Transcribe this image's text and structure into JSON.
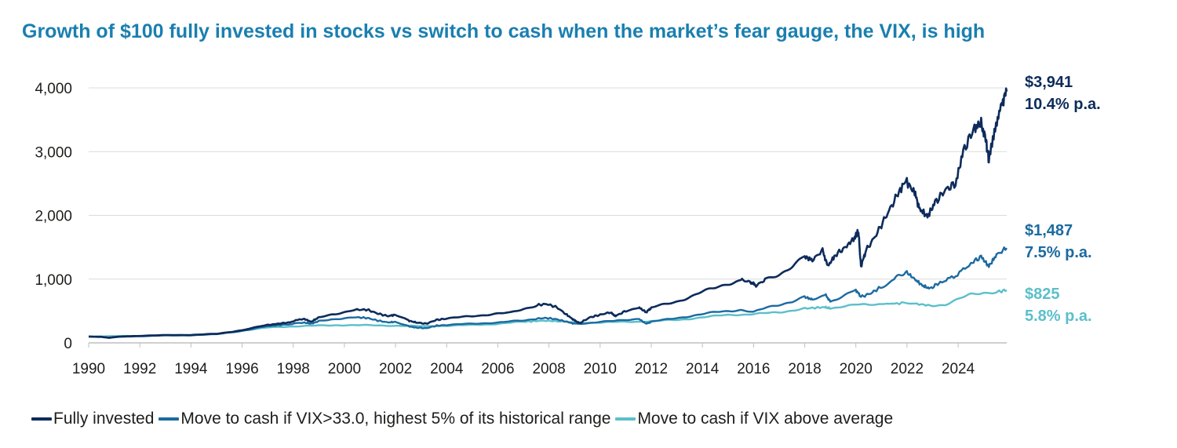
{
  "chart_data": {
    "type": "line",
    "title": "Growth of $100 fully invested in stocks vs switch to cash when the market’s fear gauge, the VIX, is high",
    "xlabel": "",
    "ylabel": "",
    "xlim": [
      1990,
      2025.9
    ],
    "ylim": [
      0,
      4000
    ],
    "x_ticks": [
      "1990",
      "1992",
      "1994",
      "1996",
      "1998",
      "2000",
      "2002",
      "2004",
      "2006",
      "2008",
      "2010",
      "2012",
      "2014",
      "2016",
      "2018",
      "2020",
      "2022",
      "2024"
    ],
    "y_ticks": [
      "0",
      "1,000",
      "2,000",
      "3,000",
      "4,000"
    ],
    "grid": "horizontal",
    "series": [
      {
        "name": "Fully invested",
        "color": "#0d2b5b",
        "end_value_label": "$3,941",
        "end_rate_label": "10.4% p.a.",
        "points": [
          [
            1990,
            100
          ],
          [
            1990.5,
            95
          ],
          [
            1990.8,
            80
          ],
          [
            1991,
            90
          ],
          [
            1991.5,
            105
          ],
          [
            1992,
            110
          ],
          [
            1993,
            120
          ],
          [
            1994,
            125
          ],
          [
            1995,
            140
          ],
          [
            1996,
            200
          ],
          [
            1997,
            280
          ],
          [
            1997.8,
            320
          ],
          [
            1998.4,
            380
          ],
          [
            1998.7,
            330
          ],
          [
            1999,
            400
          ],
          [
            1999.5,
            450
          ],
          [
            2000,
            480
          ],
          [
            2000.5,
            520
          ],
          [
            2000.9,
            520
          ],
          [
            2001.3,
            460
          ],
          [
            2001.7,
            420
          ],
          [
            2002,
            440
          ],
          [
            2002.5,
            350
          ],
          [
            2002.8,
            320
          ],
          [
            2003.2,
            300
          ],
          [
            2003.6,
            360
          ],
          [
            2004,
            380
          ],
          [
            2004.5,
            400
          ],
          [
            2005,
            420
          ],
          [
            2006,
            460
          ],
          [
            2006.5,
            470
          ],
          [
            2007,
            530
          ],
          [
            2007.5,
            590
          ],
          [
            2007.9,
            610
          ],
          [
            2008.3,
            560
          ],
          [
            2008.7,
            440
          ],
          [
            2009.0,
            350
          ],
          [
            2009.2,
            310
          ],
          [
            2009.6,
            400
          ],
          [
            2010,
            440
          ],
          [
            2010.4,
            480
          ],
          [
            2010.6,
            420
          ],
          [
            2011,
            500
          ],
          [
            2011.5,
            560
          ],
          [
            2011.8,
            480
          ],
          [
            2012,
            550
          ],
          [
            2012.5,
            600
          ],
          [
            2013,
            650
          ],
          [
            2013.5,
            720
          ],
          [
            2014,
            800
          ],
          [
            2014.5,
            860
          ],
          [
            2015,
            930
          ],
          [
            2015.5,
            990
          ],
          [
            2015.9,
            950
          ],
          [
            2016.1,
            900
          ],
          [
            2016.5,
            1000
          ],
          [
            2017,
            1080
          ],
          [
            2017.5,
            1200
          ],
          [
            2018,
            1350
          ],
          [
            2018.3,
            1300
          ],
          [
            2018.7,
            1450
          ],
          [
            2018.9,
            1200
          ],
          [
            2019.2,
            1380
          ],
          [
            2019.6,
            1500
          ],
          [
            2019.95,
            1650
          ],
          [
            2020.1,
            1750
          ],
          [
            2020.2,
            1200
          ],
          [
            2020.4,
            1450
          ],
          [
            2020.8,
            1700
          ],
          [
            2021.2,
            2000
          ],
          [
            2021.6,
            2300
          ],
          [
            2021.95,
            2550
          ],
          [
            2022.3,
            2350
          ],
          [
            2022.5,
            2100
          ],
          [
            2022.8,
            1980
          ],
          [
            2023.1,
            2200
          ],
          [
            2023.5,
            2400
          ],
          [
            2023.9,
            2500
          ],
          [
            2024.2,
            3000
          ],
          [
            2024.6,
            3350
          ],
          [
            2024.9,
            3450
          ],
          [
            2025.1,
            3150
          ],
          [
            2025.2,
            2850
          ],
          [
            2025.45,
            3400
          ],
          [
            2025.7,
            3750
          ],
          [
            2025.9,
            3941
          ]
        ]
      },
      {
        "name": "Move to cash if VIX>33.0, highest 5% of its historical range",
        "color": "#1b6aa0",
        "end_value_label": "$1,487",
        "end_rate_label": "7.5% p.a.",
        "points": [
          [
            1990,
            100
          ],
          [
            1990.5,
            92
          ],
          [
            1990.8,
            80
          ],
          [
            1991,
            88
          ],
          [
            1991.5,
            100
          ],
          [
            1992,
            105
          ],
          [
            1993,
            115
          ],
          [
            1994,
            120
          ],
          [
            1995,
            135
          ],
          [
            1996,
            190
          ],
          [
            1997,
            260
          ],
          [
            1997.8,
            290
          ],
          [
            1998.4,
            320
          ],
          [
            1998.7,
            300
          ],
          [
            1999,
            340
          ],
          [
            1999.5,
            370
          ],
          [
            2000,
            390
          ],
          [
            2000.5,
            400
          ],
          [
            2000.9,
            390
          ],
          [
            2001.3,
            350
          ],
          [
            2001.7,
            320
          ],
          [
            2002,
            330
          ],
          [
            2002.5,
            260
          ],
          [
            2002.8,
            240
          ],
          [
            2003.2,
            230
          ],
          [
            2003.6,
            270
          ],
          [
            2004,
            280
          ],
          [
            2005,
            300
          ],
          [
            2006,
            320
          ],
          [
            2007,
            350
          ],
          [
            2007.5,
            380
          ],
          [
            2007.9,
            390
          ],
          [
            2008.3,
            370
          ],
          [
            2008.7,
            330
          ],
          [
            2009.0,
            300
          ],
          [
            2009.5,
            310
          ],
          [
            2010,
            330
          ],
          [
            2010.5,
            340
          ],
          [
            2011,
            360
          ],
          [
            2011.5,
            380
          ],
          [
            2011.8,
            300
          ],
          [
            2012,
            330
          ],
          [
            2012.5,
            360
          ],
          [
            2013,
            390
          ],
          [
            2013.5,
            420
          ],
          [
            2014,
            450
          ],
          [
            2014.5,
            480
          ],
          [
            2015,
            500
          ],
          [
            2015.5,
            520
          ],
          [
            2016,
            480
          ],
          [
            2016.5,
            550
          ],
          [
            2017,
            600
          ],
          [
            2017.5,
            650
          ],
          [
            2018,
            720
          ],
          [
            2018.3,
            680
          ],
          [
            2018.8,
            760
          ],
          [
            2019,
            650
          ],
          [
            2019.5,
            740
          ],
          [
            2020,
            830
          ],
          [
            2020.2,
            720
          ],
          [
            2020.6,
            780
          ],
          [
            2021,
            880
          ],
          [
            2021.5,
            1000
          ],
          [
            2021.95,
            1120
          ],
          [
            2022.3,
            1000
          ],
          [
            2022.6,
            900
          ],
          [
            2022.9,
            850
          ],
          [
            2023.3,
            950
          ],
          [
            2023.9,
            1050
          ],
          [
            2024.5,
            1250
          ],
          [
            2024.9,
            1350
          ],
          [
            2025.2,
            1200
          ],
          [
            2025.5,
            1380
          ],
          [
            2025.9,
            1487
          ]
        ]
      },
      {
        "name": "Move to cash if VIX above average",
        "color": "#5bbfcb",
        "end_value_label": "$825",
        "end_rate_label": "5.8% p.a.",
        "points": [
          [
            1990,
            100
          ],
          [
            1991,
            105
          ],
          [
            1992,
            110
          ],
          [
            1993,
            120
          ],
          [
            1994,
            125
          ],
          [
            1995,
            140
          ],
          [
            1996,
            190
          ],
          [
            1997,
            240
          ],
          [
            1998,
            260
          ],
          [
            1999,
            270
          ],
          [
            2000,
            280
          ],
          [
            2001,
            275
          ],
          [
            2002,
            270
          ],
          [
            2003,
            260
          ],
          [
            2004,
            270
          ],
          [
            2005,
            280
          ],
          [
            2006,
            300
          ],
          [
            2007,
            330
          ],
          [
            2007.8,
            350
          ],
          [
            2008.5,
            330
          ],
          [
            2009,
            320
          ],
          [
            2010,
            320
          ],
          [
            2011,
            330
          ],
          [
            2012,
            340
          ],
          [
            2013,
            360
          ],
          [
            2014,
            400
          ],
          [
            2015,
            440
          ],
          [
            2016,
            450
          ],
          [
            2017,
            480
          ],
          [
            2018,
            540
          ],
          [
            2018.8,
            560
          ],
          [
            2019,
            540
          ],
          [
            2019.5,
            580
          ],
          [
            2020,
            600
          ],
          [
            2020.5,
            590
          ],
          [
            2021,
            610
          ],
          [
            2021.8,
            620
          ],
          [
            2022.3,
            610
          ],
          [
            2023,
            590
          ],
          [
            2023.5,
            600
          ],
          [
            2024,
            680
          ],
          [
            2024.5,
            760
          ],
          [
            2025,
            790
          ],
          [
            2025.5,
            800
          ],
          [
            2025.9,
            825
          ]
        ]
      }
    ]
  }
}
